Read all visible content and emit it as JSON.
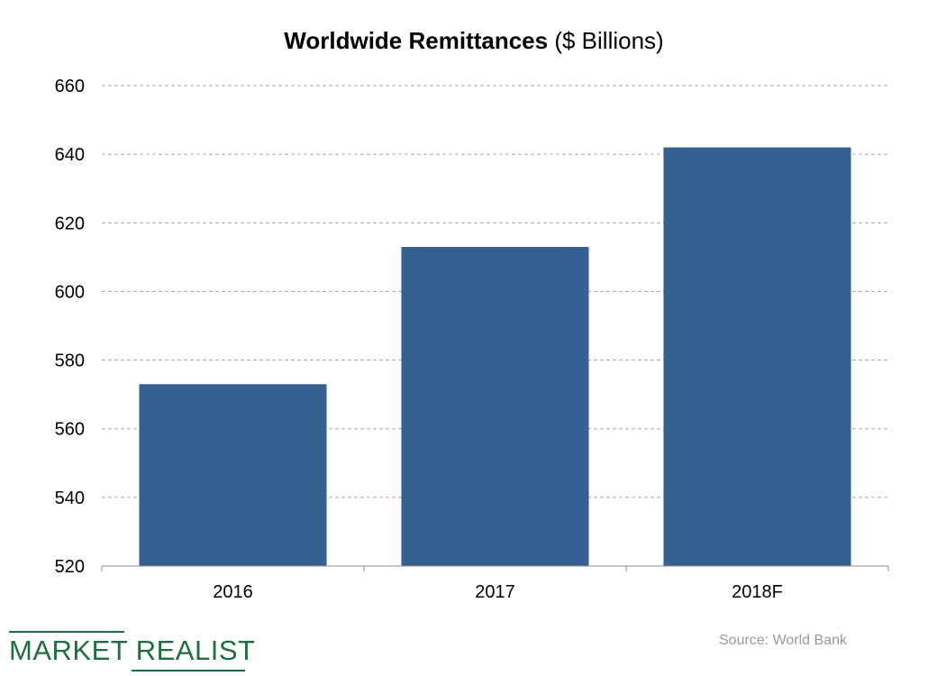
{
  "chart_data": {
    "type": "bar",
    "title_bold": "Worldwide Remittances",
    "title_rest": " ($ Billions)",
    "categories": [
      "2016",
      "2017",
      "2018F"
    ],
    "values": [
      573,
      613,
      642
    ],
    "ylim": [
      520,
      660
    ],
    "yticks": [
      "520",
      "540",
      "560",
      "580",
      "600",
      "620",
      "640",
      "660"
    ],
    "grid": true,
    "bar_color": "#376092",
    "grid_color": "#a6a6a6"
  },
  "footer": {
    "logo_text": "MARKET REALIST",
    "logo_color": "#1f6e43",
    "source": "Source: World Bank"
  }
}
